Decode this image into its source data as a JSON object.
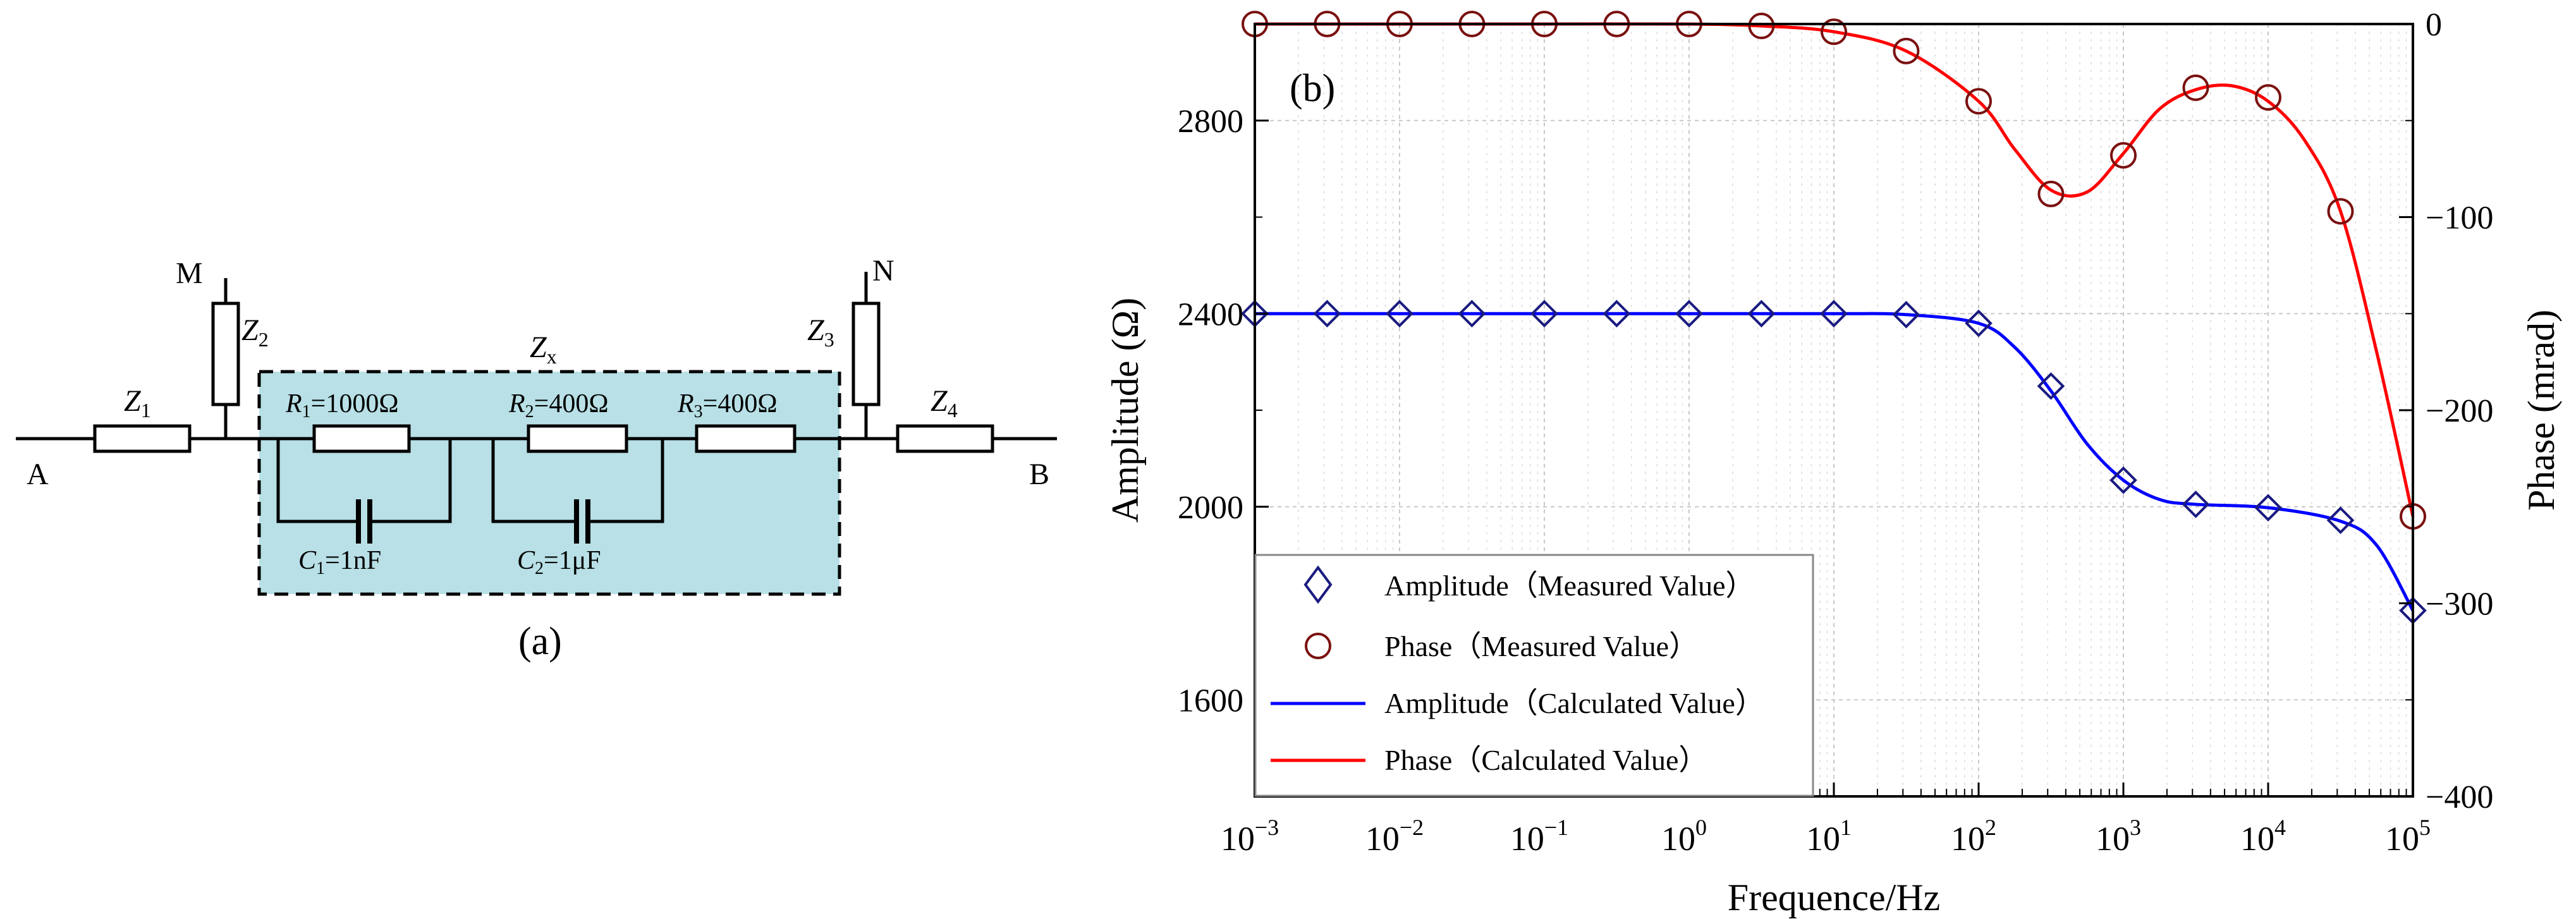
{
  "circuit": {
    "label": "(a)",
    "node_a": "A",
    "node_b": "B",
    "node_m": "M",
    "node_n": "N",
    "z1": {
      "sym": "Z",
      "sub": "1"
    },
    "z2": {
      "sym": "Z",
      "sub": "2"
    },
    "z3": {
      "sym": "Z",
      "sub": "3"
    },
    "z4": {
      "sym": "Z",
      "sub": "4"
    },
    "zx": {
      "sym": "Z",
      "sub": "x"
    },
    "r1": {
      "sym": "R",
      "sub": "1",
      "val": "=1000Ω"
    },
    "r2": {
      "sym": "R",
      "sub": "2",
      "val": "=400Ω"
    },
    "r3": {
      "sym": "R",
      "sub": "3",
      "val": "=400Ω"
    },
    "c1": {
      "sym": "C",
      "sub": "1",
      "val": "=1nF"
    },
    "c2": {
      "sym": "C",
      "sub": "2",
      "val": "=1μF"
    },
    "box_fill": "#b8e0e6"
  },
  "chart_data": {
    "type": "line",
    "label": "(b)",
    "xlabel": "Frequence/Hz",
    "ylabel_left": "Amplitude (Ω)",
    "ylabel_right": "Phase (mrad)",
    "x_scale": "log",
    "xlim_exp": [
      -3,
      5
    ],
    "x_tick_exponents": [
      "-3",
      "-2",
      "-1",
      "0",
      "1",
      "2",
      "3",
      "4",
      "5"
    ],
    "x_tick_base": "10",
    "ylim_left": [
      1400,
      3000
    ],
    "yticks_left": [
      "1600",
      "2000",
      "2400",
      "2800"
    ],
    "ylim_right": [
      -400,
      0
    ],
    "yticks_right": [
      "0",
      "−100",
      "−200",
      "−300",
      "−400"
    ],
    "grid": true,
    "colors": {
      "amplitude": "#0000ff",
      "phase": "#ff0000",
      "amp_marker": "#1a1a80",
      "phase_marker": "#7a1010"
    },
    "legend": {
      "position": "bottom-left",
      "items": [
        {
          "label": "Amplitude（Measured Value）"
        },
        {
          "label": "Phase（Measured Value）"
        },
        {
          "label": "Amplitude（Calculated Value）"
        },
        {
          "label": "Phase（Calculated Value）"
        }
      ]
    },
    "amplitude_measured": {
      "x": [
        0.001,
        0.00316,
        0.01,
        0.0316,
        0.1,
        0.316,
        1,
        3.16,
        10,
        31.6,
        100,
        316,
        1000,
        3162,
        10000,
        31623,
        100000
      ],
      "y": [
        2400,
        2400,
        2400,
        2400,
        2400,
        2400,
        2400,
        2400,
        2400,
        2398,
        2380,
        2250,
        2055,
        2005,
        1998,
        1972,
        1785
      ]
    },
    "phase_measured": {
      "x": [
        0.001,
        0.00316,
        0.01,
        0.0316,
        0.1,
        0.316,
        1,
        3.16,
        10,
        31.6,
        100,
        316,
        1000,
        3162,
        10000,
        31623,
        100000
      ],
      "y": [
        0,
        0,
        0,
        0,
        0,
        0,
        0,
        -1,
        -4,
        -14,
        -40,
        -88,
        -68,
        -33,
        -38,
        -97,
        -255
      ]
    },
    "amplitude_calculated": {
      "x": [
        0.001,
        0.01,
        0.1,
        1,
        10,
        31.6,
        100,
        178,
        316,
        562,
        1000,
        1778,
        3162,
        10000,
        31623,
        56234,
        100000
      ],
      "y": [
        2400,
        2400,
        2400,
        2400,
        2400,
        2398,
        2380,
        2330,
        2240,
        2130,
        2055,
        2015,
        2005,
        1998,
        1970,
        1920,
        1785
      ]
    },
    "phase_calculated": {
      "x": [
        0.001,
        0.01,
        0.1,
        1,
        3.16,
        10,
        31.6,
        100,
        178,
        316,
        562,
        1000,
        1778,
        3162,
        5623,
        10000,
        17783,
        31623,
        56234,
        100000
      ],
      "y": [
        0,
        0,
        0,
        0,
        -1,
        -4,
        -14,
        -40,
        -65,
        -86,
        -87,
        -67,
        -44,
        -34,
        -32,
        -40,
        -60,
        -97,
        -170,
        -255
      ]
    }
  }
}
